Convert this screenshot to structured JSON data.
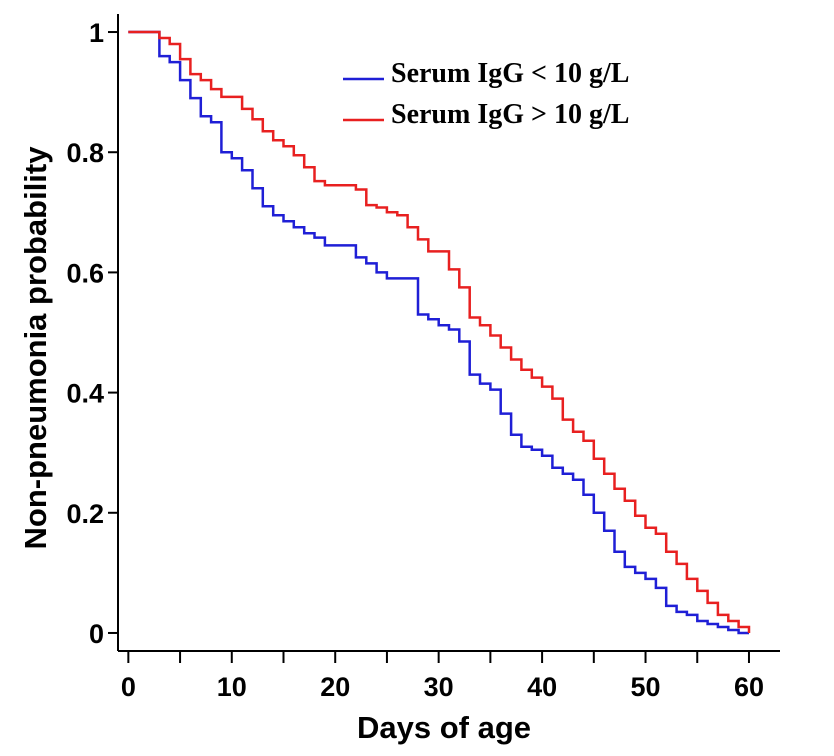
{
  "chart_data": {
    "type": "line",
    "step": true,
    "title": "",
    "xlabel": "Days of age",
    "ylabel": "Non-pneumonia probability",
    "xlim": [
      -1,
      63
    ],
    "ylim": [
      -0.03,
      1.03
    ],
    "x_ticks": [
      0,
      10,
      20,
      30,
      40,
      50,
      60
    ],
    "y_ticks": [
      0,
      0.2,
      0.4,
      0.6,
      0.8,
      1
    ],
    "x_tick_labels": [
      "0",
      "10",
      "20",
      "30",
      "40",
      "50",
      "60"
    ],
    "y_tick_labels": [
      "0",
      "0.2",
      "0.4",
      "0.6",
      "0.8",
      "1"
    ],
    "grid": false,
    "legend_position": "top-right",
    "series": [
      {
        "name": "Serum IgG < 10 g/L",
        "color": "#1f1fd6",
        "points": [
          [
            0,
            1.0
          ],
          [
            3,
            1.0
          ],
          [
            3,
            0.96
          ],
          [
            4,
            0.96
          ],
          [
            4,
            0.95
          ],
          [
            5,
            0.95
          ],
          [
            5,
            0.92
          ],
          [
            6,
            0.92
          ],
          [
            6,
            0.89
          ],
          [
            7,
            0.89
          ],
          [
            7,
            0.86
          ],
          [
            8,
            0.86
          ],
          [
            8,
            0.85
          ],
          [
            9,
            0.85
          ],
          [
            9,
            0.8
          ],
          [
            10,
            0.8
          ],
          [
            10,
            0.79
          ],
          [
            11,
            0.79
          ],
          [
            11,
            0.77
          ],
          [
            12,
            0.77
          ],
          [
            12,
            0.74
          ],
          [
            13,
            0.74
          ],
          [
            13,
            0.71
          ],
          [
            14,
            0.71
          ],
          [
            14,
            0.695
          ],
          [
            15,
            0.695
          ],
          [
            15,
            0.685
          ],
          [
            16,
            0.685
          ],
          [
            16,
            0.675
          ],
          [
            17,
            0.675
          ],
          [
            17,
            0.665
          ],
          [
            18,
            0.665
          ],
          [
            18,
            0.658
          ],
          [
            19,
            0.658
          ],
          [
            19,
            0.645
          ],
          [
            22,
            0.645
          ],
          [
            22,
            0.625
          ],
          [
            23,
            0.625
          ],
          [
            23,
            0.615
          ],
          [
            24,
            0.615
          ],
          [
            24,
            0.6
          ],
          [
            25,
            0.6
          ],
          [
            25,
            0.59
          ],
          [
            28,
            0.59
          ],
          [
            28,
            0.53
          ],
          [
            29,
            0.53
          ],
          [
            29,
            0.522
          ],
          [
            30,
            0.522
          ],
          [
            30,
            0.512
          ],
          [
            31,
            0.512
          ],
          [
            31,
            0.505
          ],
          [
            32,
            0.505
          ],
          [
            32,
            0.485
          ],
          [
            33,
            0.485
          ],
          [
            33,
            0.43
          ],
          [
            34,
            0.43
          ],
          [
            34,
            0.415
          ],
          [
            35,
            0.415
          ],
          [
            35,
            0.405
          ],
          [
            36,
            0.405
          ],
          [
            36,
            0.365
          ],
          [
            37,
            0.365
          ],
          [
            37,
            0.33
          ],
          [
            38,
            0.33
          ],
          [
            38,
            0.31
          ],
          [
            39,
            0.31
          ],
          [
            39,
            0.305
          ],
          [
            40,
            0.305
          ],
          [
            40,
            0.295
          ],
          [
            41,
            0.295
          ],
          [
            41,
            0.275
          ],
          [
            42,
            0.275
          ],
          [
            42,
            0.265
          ],
          [
            43,
            0.265
          ],
          [
            43,
            0.255
          ],
          [
            44,
            0.255
          ],
          [
            44,
            0.23
          ],
          [
            45,
            0.23
          ],
          [
            45,
            0.2
          ],
          [
            46,
            0.2
          ],
          [
            46,
            0.17
          ],
          [
            47,
            0.17
          ],
          [
            47,
            0.135
          ],
          [
            48,
            0.135
          ],
          [
            48,
            0.11
          ],
          [
            49,
            0.11
          ],
          [
            49,
            0.1
          ],
          [
            50,
            0.1
          ],
          [
            50,
            0.09
          ],
          [
            51,
            0.09
          ],
          [
            51,
            0.075
          ],
          [
            52,
            0.075
          ],
          [
            52,
            0.045
          ],
          [
            53,
            0.045
          ],
          [
            53,
            0.035
          ],
          [
            54,
            0.035
          ],
          [
            54,
            0.03
          ],
          [
            55,
            0.03
          ],
          [
            55,
            0.02
          ],
          [
            56,
            0.02
          ],
          [
            56,
            0.015
          ],
          [
            57,
            0.015
          ],
          [
            57,
            0.01
          ],
          [
            58,
            0.01
          ],
          [
            58,
            0.005
          ],
          [
            59,
            0.005
          ],
          [
            59,
            0.0
          ],
          [
            60,
            0.0
          ]
        ]
      },
      {
        "name": "Serum IgG > 10 g/L",
        "color": "#e82020",
        "points": [
          [
            0,
            1.0
          ],
          [
            3,
            1.0
          ],
          [
            3,
            0.99
          ],
          [
            4,
            0.99
          ],
          [
            4,
            0.98
          ],
          [
            5,
            0.98
          ],
          [
            5,
            0.955
          ],
          [
            6,
            0.955
          ],
          [
            6,
            0.93
          ],
          [
            7,
            0.93
          ],
          [
            7,
            0.92
          ],
          [
            8,
            0.92
          ],
          [
            8,
            0.905
          ],
          [
            9,
            0.905
          ],
          [
            9,
            0.892
          ],
          [
            11,
            0.892
          ],
          [
            11,
            0.872
          ],
          [
            12,
            0.872
          ],
          [
            12,
            0.855
          ],
          [
            13,
            0.855
          ],
          [
            13,
            0.835
          ],
          [
            14,
            0.835
          ],
          [
            14,
            0.82
          ],
          [
            15,
            0.82
          ],
          [
            15,
            0.81
          ],
          [
            16,
            0.81
          ],
          [
            16,
            0.795
          ],
          [
            17,
            0.795
          ],
          [
            17,
            0.775
          ],
          [
            18,
            0.775
          ],
          [
            18,
            0.752
          ],
          [
            19,
            0.752
          ],
          [
            19,
            0.745
          ],
          [
            22,
            0.745
          ],
          [
            22,
            0.738
          ],
          [
            23,
            0.738
          ],
          [
            23,
            0.712
          ],
          [
            24,
            0.712
          ],
          [
            24,
            0.708
          ],
          [
            25,
            0.708
          ],
          [
            25,
            0.7
          ],
          [
            26,
            0.7
          ],
          [
            26,
            0.695
          ],
          [
            27,
            0.695
          ],
          [
            27,
            0.675
          ],
          [
            28,
            0.675
          ],
          [
            28,
            0.655
          ],
          [
            29,
            0.655
          ],
          [
            29,
            0.635
          ],
          [
            31,
            0.635
          ],
          [
            31,
            0.605
          ],
          [
            32,
            0.605
          ],
          [
            32,
            0.575
          ],
          [
            33,
            0.575
          ],
          [
            33,
            0.525
          ],
          [
            34,
            0.525
          ],
          [
            34,
            0.512
          ],
          [
            35,
            0.512
          ],
          [
            35,
            0.495
          ],
          [
            36,
            0.495
          ],
          [
            36,
            0.475
          ],
          [
            37,
            0.475
          ],
          [
            37,
            0.455
          ],
          [
            38,
            0.455
          ],
          [
            38,
            0.438
          ],
          [
            39,
            0.438
          ],
          [
            39,
            0.425
          ],
          [
            40,
            0.425
          ],
          [
            40,
            0.41
          ],
          [
            41,
            0.41
          ],
          [
            41,
            0.39
          ],
          [
            42,
            0.39
          ],
          [
            42,
            0.355
          ],
          [
            43,
            0.355
          ],
          [
            43,
            0.335
          ],
          [
            44,
            0.335
          ],
          [
            44,
            0.32
          ],
          [
            45,
            0.32
          ],
          [
            45,
            0.29
          ],
          [
            46,
            0.29
          ],
          [
            46,
            0.265
          ],
          [
            47,
            0.265
          ],
          [
            47,
            0.24
          ],
          [
            48,
            0.24
          ],
          [
            48,
            0.22
          ],
          [
            49,
            0.22
          ],
          [
            49,
            0.195
          ],
          [
            50,
            0.195
          ],
          [
            50,
            0.175
          ],
          [
            51,
            0.175
          ],
          [
            51,
            0.165
          ],
          [
            52,
            0.165
          ],
          [
            52,
            0.135
          ],
          [
            53,
            0.135
          ],
          [
            53,
            0.115
          ],
          [
            54,
            0.115
          ],
          [
            54,
            0.09
          ],
          [
            55,
            0.09
          ],
          [
            55,
            0.07
          ],
          [
            56,
            0.07
          ],
          [
            56,
            0.05
          ],
          [
            57,
            0.05
          ],
          [
            57,
            0.03
          ],
          [
            58,
            0.03
          ],
          [
            58,
            0.02
          ],
          [
            59,
            0.02
          ],
          [
            59,
            0.01
          ],
          [
            60,
            0.01
          ],
          [
            60,
            0.0
          ]
        ]
      }
    ]
  }
}
